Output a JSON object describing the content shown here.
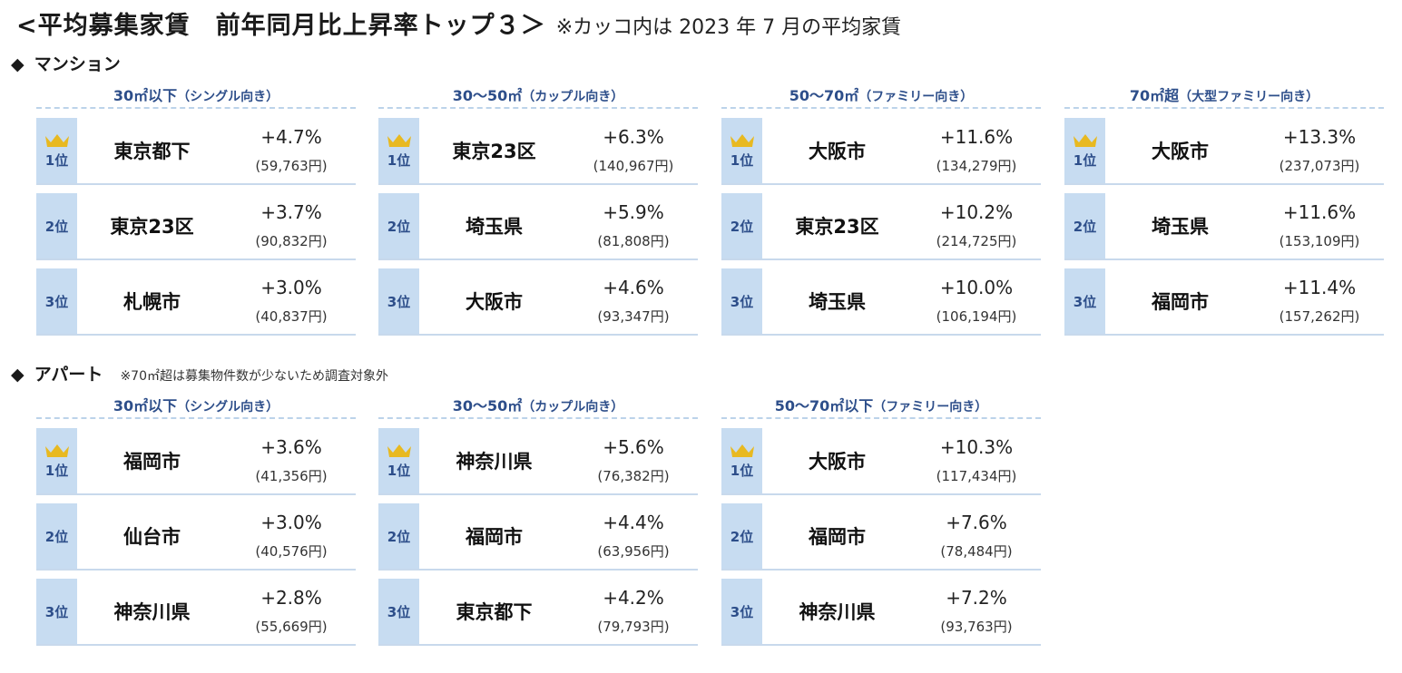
{
  "title": {
    "main": "<平均募集家賃　前年同月比上昇率トップ３＞",
    "note": "※カッコ内は 2023 年 7 月の平均家賃"
  },
  "rank_labels": [
    "1位",
    "2位",
    "3位"
  ],
  "mansion": {
    "label": "マンション",
    "groups": [
      {
        "title": "30㎡以下",
        "paren": "（シングル向き）",
        "rows": [
          {
            "city": "東京都下",
            "pct": "+4.7%",
            "rent": "(59,763円)"
          },
          {
            "city": "東京23区",
            "pct": "+3.7%",
            "rent": "(90,832円)"
          },
          {
            "city": "札幌市",
            "pct": "+3.0%",
            "rent": "(40,837円)"
          }
        ]
      },
      {
        "title": "30〜50㎡",
        "paren": "（カップル向き）",
        "rows": [
          {
            "city": "東京23区",
            "pct": "+6.3%",
            "rent": "(140,967円)"
          },
          {
            "city": "埼玉県",
            "pct": "+5.9%",
            "rent": "(81,808円)"
          },
          {
            "city": "大阪市",
            "pct": "+4.6%",
            "rent": "(93,347円)"
          }
        ]
      },
      {
        "title": "50〜70㎡",
        "paren": "（ファミリー向き）",
        "rows": [
          {
            "city": "大阪市",
            "pct": "+11.6%",
            "rent": "(134,279円)"
          },
          {
            "city": "東京23区",
            "pct": "+10.2%",
            "rent": "(214,725円)"
          },
          {
            "city": "埼玉県",
            "pct": "+10.0%",
            "rent": "(106,194円)"
          }
        ]
      },
      {
        "title": "70㎡超",
        "paren": "（大型ファミリー向き）",
        "rows": [
          {
            "city": "大阪市",
            "pct": "+13.3%",
            "rent": "(237,073円)"
          },
          {
            "city": "埼玉県",
            "pct": "+11.6%",
            "rent": "(153,109円)"
          },
          {
            "city": "福岡市",
            "pct": "+11.4%",
            "rent": "(157,262円)"
          }
        ]
      }
    ]
  },
  "apart": {
    "label": "アパート",
    "sub": "※70㎡超は募集物件数が少ないため調査対象外",
    "groups": [
      {
        "title": "30㎡以下",
        "paren": "（シングル向き）",
        "rows": [
          {
            "city": "福岡市",
            "pct": "+3.6%",
            "rent": "(41,356円)"
          },
          {
            "city": "仙台市",
            "pct": "+3.0%",
            "rent": "(40,576円)"
          },
          {
            "city": "神奈川県",
            "pct": "+2.8%",
            "rent": "(55,669円)"
          }
        ]
      },
      {
        "title": "30〜50㎡",
        "paren": "（カップル向き）",
        "rows": [
          {
            "city": "神奈川県",
            "pct": "+5.6%",
            "rent": "(76,382円)"
          },
          {
            "city": "福岡市",
            "pct": "+4.4%",
            "rent": "(63,956円)"
          },
          {
            "city": "東京都下",
            "pct": "+4.2%",
            "rent": "(79,793円)"
          }
        ]
      },
      {
        "title": "50〜70㎡以下",
        "paren": "（ファミリー向き）",
        "rows": [
          {
            "city": "大阪市",
            "pct": "+10.3%",
            "rent": "(117,434円)"
          },
          {
            "city": "福岡市",
            "pct": "+7.6%",
            "rent": "(78,484円)"
          },
          {
            "city": "神奈川県",
            "pct": "+7.2%",
            "rent": "(93,763円)"
          }
        ]
      }
    ]
  },
  "colors": {
    "heading_blue": "#2d4e8a",
    "rank_bg": "#c7dcf1",
    "crown_gold": "#e8b921",
    "divider": "#c8d9ec"
  },
  "icons": {
    "crown": "crown-icon",
    "diamond": "diamond-bullet-icon"
  }
}
